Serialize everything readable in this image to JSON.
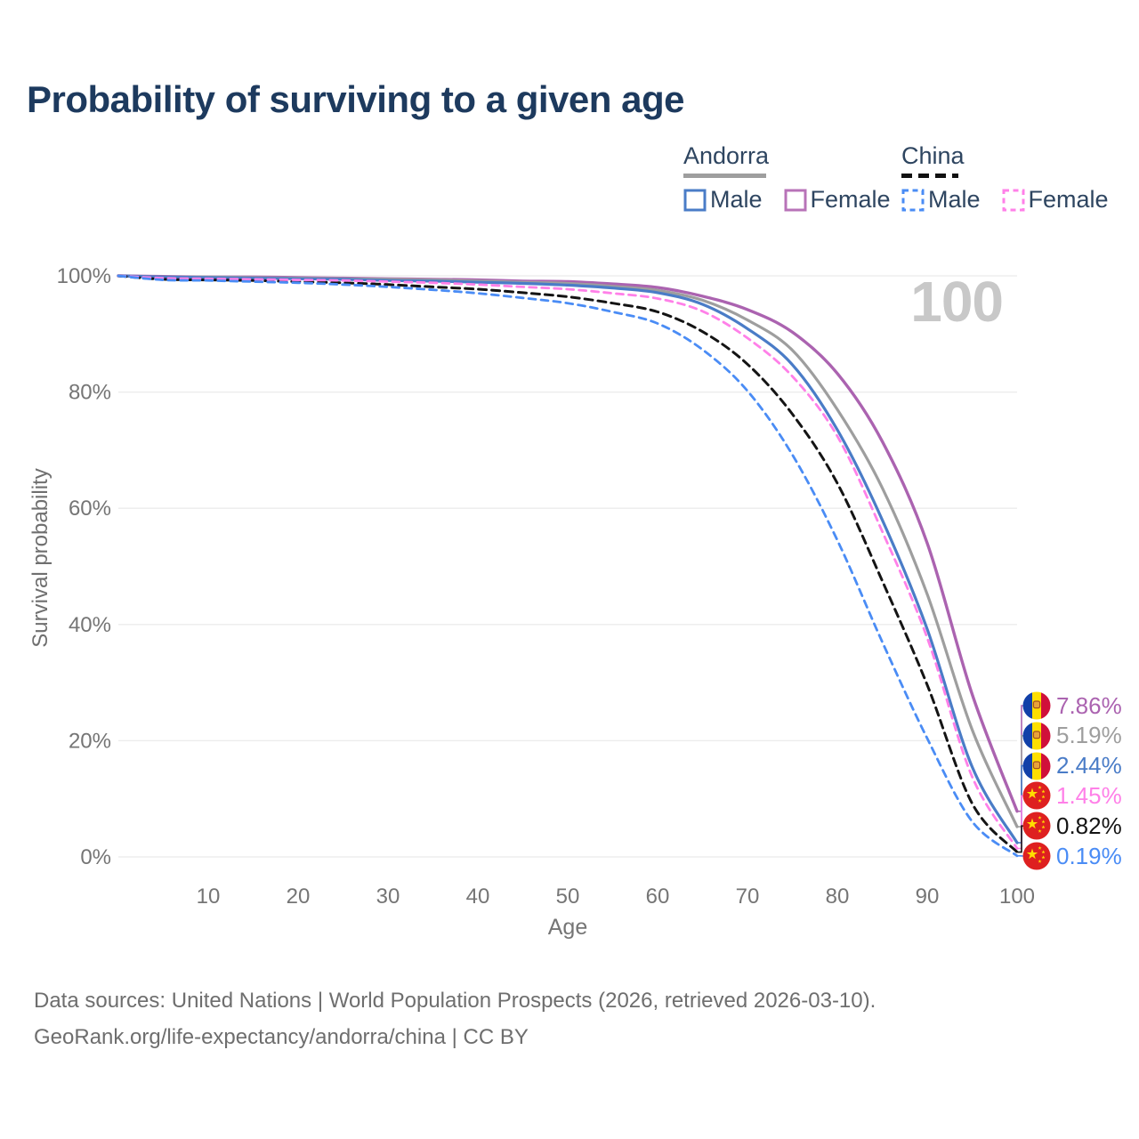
{
  "title": "Probability of surviving to a given age",
  "legend": {
    "groups": [
      {
        "country": "Andorra",
        "line_style": "solid",
        "underline_color": "#9e9e9e",
        "items": [
          {
            "label": "Male",
            "color": "#4a7cc7"
          },
          {
            "label": "Female",
            "color": "#b873b8"
          }
        ]
      },
      {
        "country": "China",
        "line_style": "dashed",
        "underline_color": "#111111",
        "items": [
          {
            "label": "Male",
            "color": "#4a8cf5"
          },
          {
            "label": "Female",
            "color": "#ff80e8"
          }
        ]
      }
    ]
  },
  "chart_data": {
    "type": "line",
    "title": "Probability of surviving to a given age",
    "xlabel": "Age",
    "ylabel": "Survival probability",
    "xlim": [
      0,
      100
    ],
    "ylim": [
      0,
      100
    ],
    "grid": "horizontal",
    "age_indicator": "100",
    "x_ticks": [
      10,
      20,
      30,
      40,
      50,
      60,
      70,
      80,
      90,
      100
    ],
    "y_tick_values": [
      0,
      20,
      40,
      60,
      80,
      100
    ],
    "y_tick_labels": [
      "0%",
      "20%",
      "40%",
      "60%",
      "80%",
      "100%"
    ],
    "x": [
      0,
      5,
      10,
      15,
      20,
      25,
      30,
      35,
      40,
      45,
      50,
      55,
      60,
      65,
      70,
      75,
      80,
      85,
      90,
      95,
      100
    ],
    "series": [
      {
        "name": "Andorra Female",
        "country": "Andorra",
        "sex": "Female",
        "color": "#ab63b0",
        "dashed": false,
        "width": 3.4,
        "values": [
          100,
          99.9,
          99.8,
          99.8,
          99.7,
          99.6,
          99.5,
          99.4,
          99.3,
          99.1,
          99.0,
          98.6,
          98.0,
          96.5,
          94.2,
          90.3,
          83.2,
          71.5,
          54.0,
          28.0,
          7.86
        ]
      },
      {
        "name": "Andorra Both sexes",
        "country": "Andorra",
        "sex": "Both",
        "color": "#9e9e9e",
        "dashed": false,
        "width": 3.2,
        "values": [
          100,
          99.8,
          99.8,
          99.7,
          99.6,
          99.5,
          99.4,
          99.3,
          99.1,
          98.9,
          98.7,
          98.2,
          97.5,
          95.8,
          92.4,
          87.2,
          77.0,
          63.5,
          45.2,
          21.9,
          5.19
        ]
      },
      {
        "name": "Andorra Male",
        "country": "Andorra",
        "sex": "Male",
        "color": "#4a7cc7",
        "dashed": false,
        "width": 3.2,
        "values": [
          100,
          99.8,
          99.7,
          99.6,
          99.5,
          99.4,
          99.2,
          99.1,
          98.9,
          98.7,
          98.4,
          97.9,
          97.1,
          95.1,
          90.9,
          84.7,
          73.5,
          58.0,
          39.2,
          15.5,
          2.44
        ]
      },
      {
        "name": "China Both sexes",
        "country": "China",
        "sex": "Both",
        "color": "#141414",
        "dashed": true,
        "width": 3.0,
        "values": [
          100,
          99.4,
          99.3,
          99.2,
          99.0,
          98.8,
          98.5,
          98.1,
          97.7,
          97.1,
          96.4,
          95.3,
          93.8,
          90.4,
          84.8,
          76.2,
          64.3,
          47.5,
          29.6,
          9.2,
          0.82
        ]
      },
      {
        "name": "China Female",
        "country": "China",
        "sex": "Female",
        "color": "#ff80e8",
        "dashed": true,
        "width": 2.8,
        "values": [
          100,
          99.6,
          99.5,
          99.4,
          99.3,
          99.2,
          99.0,
          98.8,
          98.5,
          98.1,
          97.7,
          97.0,
          96.1,
          93.9,
          89.3,
          82.7,
          72.4,
          56.0,
          37.7,
          13.8,
          1.45
        ]
      },
      {
        "name": "China Male",
        "country": "China",
        "sex": "Male",
        "color": "#4a8cf5",
        "dashed": true,
        "width": 2.8,
        "values": [
          100,
          99.3,
          99.2,
          99.0,
          98.8,
          98.5,
          98.1,
          97.6,
          97.0,
          96.2,
          95.3,
          93.8,
          91.8,
          87.3,
          80.2,
          69.2,
          54.5,
          37.0,
          20.4,
          6.1,
          0.19
        ]
      }
    ],
    "annotations": [
      {
        "label": "7.86%",
        "value": 7.86,
        "series": "Andorra Female",
        "flag": "andorra",
        "color": "#ab63b0"
      },
      {
        "label": "5.19%",
        "value": 5.19,
        "series": "Andorra Both sexes",
        "flag": "andorra",
        "color": "#9e9e9e"
      },
      {
        "label": "2.44%",
        "value": 2.44,
        "series": "Andorra Male",
        "flag": "andorra",
        "color": "#4a7cc7"
      },
      {
        "label": "1.45%",
        "value": 1.45,
        "series": "China Female",
        "flag": "china",
        "color": "#ff80e8"
      },
      {
        "label": "0.82%",
        "value": 0.82,
        "series": "China Both sexes",
        "flag": "china",
        "color": "#141414"
      },
      {
        "label": "0.19%",
        "value": 0.19,
        "series": "China Male",
        "flag": "china",
        "color": "#4a8cf5"
      }
    ]
  },
  "footer": {
    "line1": "Data sources: United Nations | World Population Prospects (2026, retrieved 2026-03-10).",
    "line2": "GeoRank.org/life-expectancy/andorra/china | CC BY"
  }
}
